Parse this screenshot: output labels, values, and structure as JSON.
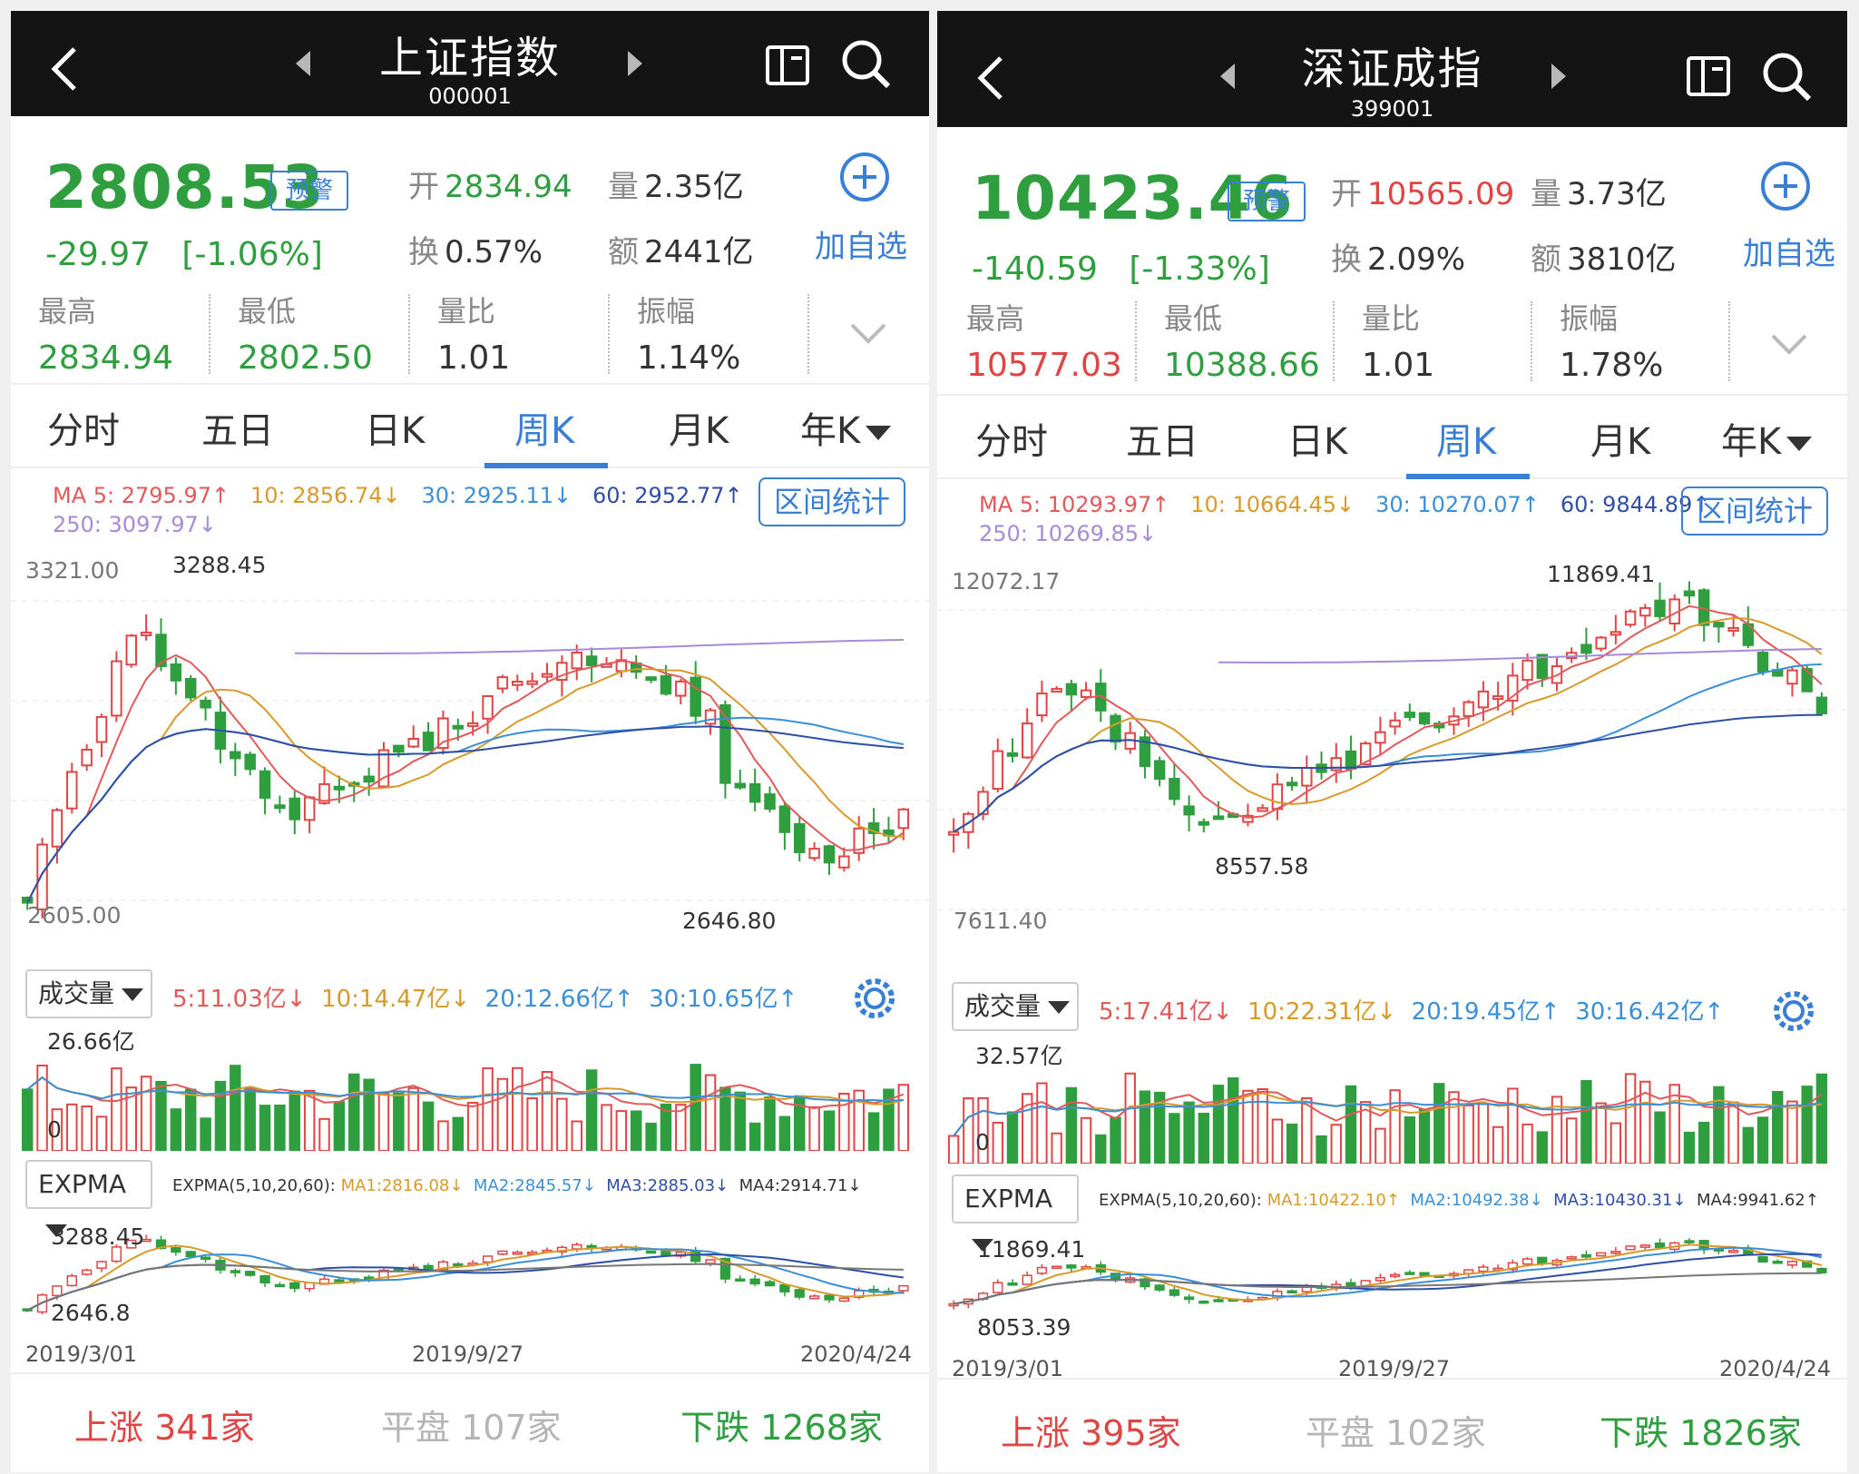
{
  "left": {
    "title": "上证指数",
    "code": "000001",
    "price": "2808.53",
    "alert": "预警",
    "change": "-29.97",
    "change_pct": "[-1.06%]",
    "open_label": "开",
    "open": "2834.94",
    "vol_label": "量",
    "vol": "2.35亿",
    "turn_label": "换",
    "turn": "0.57%",
    "amt_label": "额",
    "amt": "2441亿",
    "add": "加自选",
    "stats": [
      {
        "label": "最高",
        "value": "2834.94"
      },
      {
        "label": "最低",
        "value": "2802.50"
      },
      {
        "label": "量比",
        "value": "1.01"
      },
      {
        "label": "振幅",
        "value": "1.14%"
      }
    ],
    "tabs": [
      "分时",
      "五日",
      "日K",
      "周K",
      "月K",
      "年K"
    ],
    "active_tab": "周K",
    "ma": {
      "ma5": "MA 5: 2795.97↑",
      "ma10": "10: 2856.74↓",
      "ma30": "30: 2925.11↓",
      "ma60": "60: 2952.77↑",
      "ma250": "250: 3097.97↓"
    },
    "range_stat": "区间统计",
    "price_top": "3321.00",
    "price_bottom": "2605.00",
    "hi_mark": "3288.45",
    "lo_mark": "2646.80",
    "vol_selector": "成交量",
    "vol_ma": {
      "v5": "5:11.03亿↓",
      "v10": "10:14.47亿↓",
      "v20": "20:12.66亿↑",
      "v30": "30:10.65亿↑"
    },
    "vol_top": "26.66亿",
    "vol_zero": "0",
    "expma_selector": "EXPMA",
    "expma": {
      "title": "EXPMA(5,10,20,60):",
      "ma1": "MA1:2816.08↓",
      "ma2": "MA2:2845.57↓",
      "ma3": "MA3:2885.03↓",
      "ma4": "MA4:2914.71↓"
    },
    "expma_top": "3288.45",
    "expma_bottom": "2646.8",
    "dates": [
      "2019/3/01",
      "2019/9/27",
      "2020/4/24"
    ],
    "footer": {
      "up_label": "上涨",
      "up": "341家",
      "flat_label": "平盘",
      "flat": "107家",
      "down_label": "下跌",
      "down": "1268家"
    }
  },
  "right": {
    "title": "深证成指",
    "code": "399001",
    "price": "10423.46",
    "alert": "预警",
    "change": "-140.59",
    "change_pct": "[-1.33%]",
    "open_label": "开",
    "open": "10565.09",
    "vol_label": "量",
    "vol": "3.73亿",
    "turn_label": "换",
    "turn": "2.09%",
    "amt_label": "额",
    "amt": "3810亿",
    "add": "加自选",
    "stats": [
      {
        "label": "最高",
        "value": "10577.03"
      },
      {
        "label": "最低",
        "value": "10388.66"
      },
      {
        "label": "量比",
        "value": "1.01"
      },
      {
        "label": "振幅",
        "value": "1.78%"
      }
    ],
    "tabs": [
      "分时",
      "五日",
      "日K",
      "周K",
      "月K",
      "年K"
    ],
    "active_tab": "周K",
    "ma": {
      "ma5": "MA 5: 10293.97↑",
      "ma10": "10: 10664.45↓",
      "ma30": "30: 10270.07↑",
      "ma60": "60: 9844.89↑",
      "ma250": "250: 10269.85↓"
    },
    "range_stat": "区间统计",
    "price_top": "12072.17",
    "price_bottom": "7611.40",
    "hi_mark": "11869.41",
    "lo_mark": "8557.58",
    "vol_selector": "成交量",
    "vol_ma": {
      "v5": "5:17.41亿↓",
      "v10": "10:22.31亿↓",
      "v20": "20:19.45亿↑",
      "v30": "30:16.42亿↑"
    },
    "vol_top": "32.57亿",
    "vol_zero": "0",
    "expma_selector": "EXPMA",
    "expma": {
      "title": "EXPMA(5,10,20,60):",
      "ma1": "MA1:10422.10↑",
      "ma2": "MA2:10492.38↓",
      "ma3": "MA3:10430.31↓",
      "ma4": "MA4:9941.62↑"
    },
    "expma_top": "11869.41",
    "expma_bottom": "8053.39",
    "dates": [
      "2019/3/01",
      "2019/9/27",
      "2020/4/24"
    ],
    "footer": {
      "up_label": "上涨",
      "up": "395家",
      "flat_label": "平盘",
      "flat": "102家",
      "down_label": "下跌",
      "down": "1826家"
    }
  },
  "colors": {
    "up": "#e04545",
    "down": "#2e9e3e",
    "accent": "#3a7fd6",
    "header_bg": "#141414"
  }
}
